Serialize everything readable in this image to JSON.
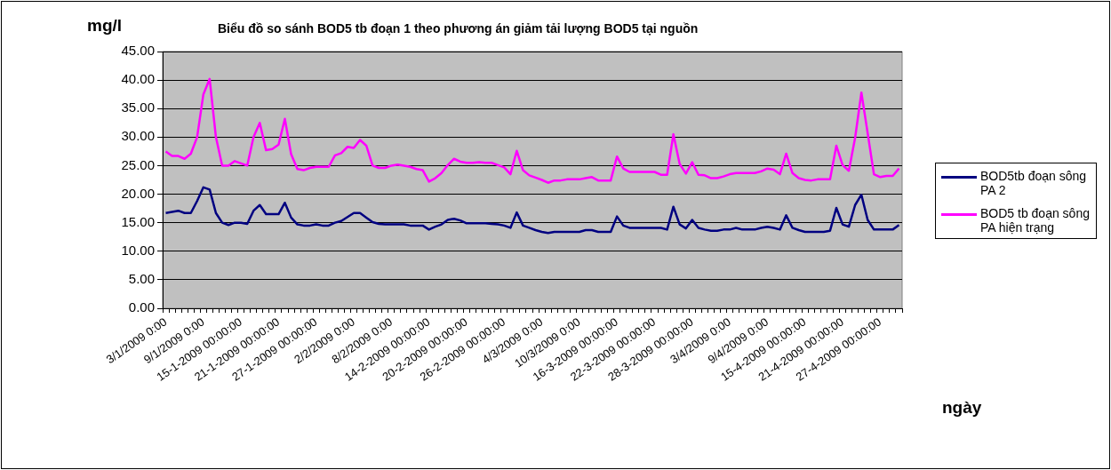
{
  "chart_data": {
    "type": "line",
    "title": "Biểu đồ so sánh BOD5 tb đoạn 1 theo phương án giảm tải lượng BOD5 tại nguồn",
    "xlabel": "ngày",
    "ylabel": "mg/l",
    "categories": [
      "3/1/2009 0:00",
      null,
      null,
      null,
      null,
      null,
      "9/1/2009 0:00",
      null,
      null,
      null,
      null,
      null,
      "15-1-2009 00:00:00",
      null,
      null,
      null,
      null,
      null,
      "21-1-2009 00:00:00",
      null,
      null,
      null,
      null,
      null,
      "27-1-2009 00:00:00",
      null,
      null,
      null,
      null,
      null,
      "2/2/2009 0:00",
      null,
      null,
      null,
      null,
      null,
      "8/2/2009 0:00",
      null,
      null,
      null,
      null,
      null,
      "14-2-2009 00:00:00",
      null,
      null,
      null,
      null,
      null,
      "20-2-2009 00:00:00",
      null,
      null,
      null,
      null,
      null,
      "26-2-2009 00:00:00",
      null,
      null,
      null,
      null,
      null,
      "4/3/2009 0:00",
      null,
      null,
      null,
      null,
      null,
      "10/3/2009 0:00",
      null,
      null,
      null,
      null,
      null,
      "16-3-2009 00:00:00",
      null,
      null,
      null,
      null,
      null,
      "22-3-2009 00:00:00",
      null,
      null,
      null,
      null,
      null,
      "28-3-2009 00:00:00",
      null,
      null,
      null,
      null,
      null,
      "3/4/2009 0:00",
      null,
      null,
      null,
      null,
      null,
      "9/4/2009 0:00",
      null,
      null,
      null,
      null,
      null,
      "15-4-2009 00:00:00",
      null,
      null,
      null,
      null,
      null,
      "21-4-2009 00:00:00",
      null,
      null,
      null,
      null,
      null,
      "27-4-2009 00:00:00",
      null,
      null,
      null
    ],
    "series": [
      {
        "name": "BOD5tb đoạn sông PA 2",
        "color": "#000080",
        "values": [
          16.7,
          16.9,
          17.1,
          16.7,
          16.7,
          18.8,
          21.2,
          20.8,
          16.7,
          15.0,
          14.6,
          15.0,
          15.0,
          14.8,
          17.1,
          18.1,
          16.5,
          16.5,
          16.5,
          18.5,
          15.9,
          14.7,
          14.5,
          14.5,
          14.7,
          14.5,
          14.5,
          15.0,
          15.3,
          16.0,
          16.7,
          16.7,
          15.9,
          15.1,
          14.8,
          14.7,
          14.7,
          14.7,
          14.7,
          14.5,
          14.5,
          14.5,
          13.8,
          14.3,
          14.7,
          15.5,
          15.7,
          15.4,
          14.9,
          14.9,
          14.9,
          14.9,
          14.8,
          14.7,
          14.5,
          14.1,
          16.8,
          14.5,
          14.1,
          13.7,
          13.4,
          13.2,
          13.4,
          13.4,
          13.4,
          13.4,
          13.4,
          13.7,
          13.7,
          13.4,
          13.4,
          13.4,
          16.1,
          14.5,
          14.1,
          14.1,
          14.1,
          14.1,
          14.1,
          14.1,
          13.8,
          17.8,
          14.7,
          14.0,
          15.5,
          14.1,
          13.8,
          13.6,
          13.6,
          13.8,
          13.8,
          14.1,
          13.8,
          13.8,
          13.8,
          14.1,
          14.3,
          14.1,
          13.8,
          16.3,
          14.1,
          13.7,
          13.4,
          13.4,
          13.4,
          13.4,
          13.6,
          17.6,
          14.7,
          14.3,
          18.1,
          19.9,
          15.5,
          13.8,
          13.8,
          13.8,
          13.8,
          14.6
        ]
      },
      {
        "name": "BOD5 tb đoạn sông PA hiện trạng",
        "color": "#ff00ff",
        "values": [
          27.5,
          26.7,
          26.7,
          26.2,
          27.1,
          30.0,
          37.5,
          40.2,
          30.0,
          25.0,
          25.0,
          25.8,
          25.4,
          25.0,
          30.0,
          32.5,
          27.7,
          27.9,
          28.7,
          33.2,
          27.0,
          24.4,
          24.2,
          24.6,
          24.8,
          24.8,
          24.8,
          26.8,
          27.2,
          28.3,
          28.1,
          29.5,
          28.5,
          25.0,
          24.6,
          24.6,
          25.0,
          25.2,
          25.0,
          24.8,
          24.4,
          24.2,
          22.2,
          22.8,
          23.7,
          25.1,
          26.2,
          25.7,
          25.5,
          25.5,
          25.6,
          25.5,
          25.5,
          25.1,
          24.7,
          23.5,
          27.6,
          24.2,
          23.3,
          22.9,
          22.5,
          22.0,
          22.4,
          22.4,
          22.6,
          22.6,
          22.6,
          22.8,
          23.0,
          22.4,
          22.4,
          22.4,
          26.6,
          24.5,
          23.9,
          23.9,
          23.9,
          23.9,
          23.9,
          23.4,
          23.4,
          30.5,
          25.3,
          23.6,
          25.6,
          23.4,
          23.3,
          22.8,
          22.8,
          23.1,
          23.5,
          23.7,
          23.7,
          23.7,
          23.7,
          24.0,
          24.5,
          24.3,
          23.5,
          27.1,
          23.7,
          22.8,
          22.5,
          22.4,
          22.6,
          22.6,
          22.6,
          28.5,
          25.1,
          24.1,
          29.9,
          37.8,
          30.7,
          23.5,
          23.0,
          23.2,
          23.2,
          24.5
        ]
      }
    ],
    "ylim": [
      0,
      45
    ],
    "yticks": [
      {
        "value": 0,
        "label": "0.00"
      },
      {
        "value": 5,
        "label": "5.00"
      },
      {
        "value": 10,
        "label": "10.00"
      },
      {
        "value": 15,
        "label": "15.00"
      },
      {
        "value": 20,
        "label": "20.00"
      },
      {
        "value": 25,
        "label": "25.00"
      },
      {
        "value": 30,
        "label": "30.00"
      },
      {
        "value": 35,
        "label": "35.00"
      },
      {
        "value": 40,
        "label": "40.00"
      },
      {
        "value": 45,
        "label": "45.00"
      }
    ],
    "grid": "y",
    "legend": "right",
    "marker": "none"
  }
}
